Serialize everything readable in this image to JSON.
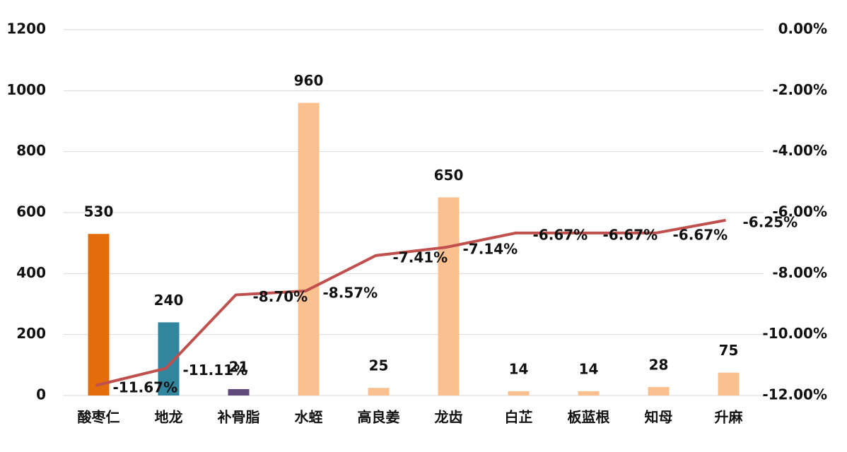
{
  "chart_data": {
    "type": "bar-line",
    "categories": [
      "酸枣仁",
      "地龙",
      "补骨脂",
      "水蛭",
      "高良姜",
      "龙齿",
      "白芷",
      "板蓝根",
      "知母",
      "升麻"
    ],
    "series": [
      {
        "type": "bar",
        "colors": [
          "#e46c0a",
          "#31859c",
          "#5f497a",
          "#fac090",
          "#fac090",
          "#fac090",
          "#fac090",
          "#fac090",
          "#fac090",
          "#fac090"
        ],
        "values": [
          530,
          240,
          21,
          960,
          25,
          650,
          14,
          14,
          28,
          75
        ]
      },
      {
        "type": "line",
        "axis": "y2",
        "color": "#c0504d",
        "values": [
          -11.67,
          -11.11,
          -8.7,
          -8.57,
          -7.41,
          -7.14,
          -6.67,
          -6.67,
          -6.67,
          -6.25
        ],
        "value_labels": [
          "-11.67%",
          "-11.11%",
          "-8.70%",
          "-8.57%",
          "-7.41%",
          "-7.14%",
          "-6.67%",
          "-6.67%",
          "-6.67%",
          "-6.25%"
        ]
      }
    ],
    "ylim": [
      0,
      1200
    ],
    "yticks": [
      0,
      200,
      400,
      600,
      800,
      1000,
      1200
    ],
    "y2lim": [
      -12,
      0
    ],
    "y2ticks": [
      {
        "value": -12,
        "label": "-12.00%"
      },
      {
        "value": -10,
        "label": "-10.00%"
      },
      {
        "value": -8,
        "label": "-8.00%"
      },
      {
        "value": -6,
        "label": "-6.00%"
      },
      {
        "value": -4,
        "label": "-4.00%"
      },
      {
        "value": -2,
        "label": "-2.00%"
      },
      {
        "value": 0,
        "label": "0.00%"
      }
    ],
    "grid": true
  }
}
